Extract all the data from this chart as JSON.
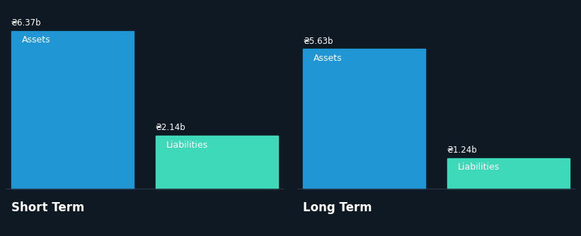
{
  "background_color": "#0f1923",
  "assets_color": "#2196d4",
  "liabilities_color": "#3dd9b8",
  "text_color": "#ffffff",
  "groups": [
    {
      "label": "Short Term",
      "assets_value": 6.37,
      "liabilities_value": 2.14,
      "assets_label": "Assets",
      "liabilities_label": "Liabilities",
      "assets_annotation": "₴6.37b",
      "liabilities_annotation": "₴2.14b"
    },
    {
      "label": "Long Term",
      "assets_value": 5.63,
      "liabilities_value": 1.24,
      "assets_label": "Assets",
      "liabilities_label": "Liabilities",
      "assets_annotation": "₴5.63b",
      "liabilities_annotation": "₴1.24b"
    }
  ],
  "max_value": 6.37,
  "figsize": [
    8.21,
    3.34
  ],
  "dpi": 100,
  "annotation_fontsize": 8.5,
  "bar_label_fontsize": 9,
  "group_label_fontsize": 12,
  "baseline_color": "#2a3a4a"
}
